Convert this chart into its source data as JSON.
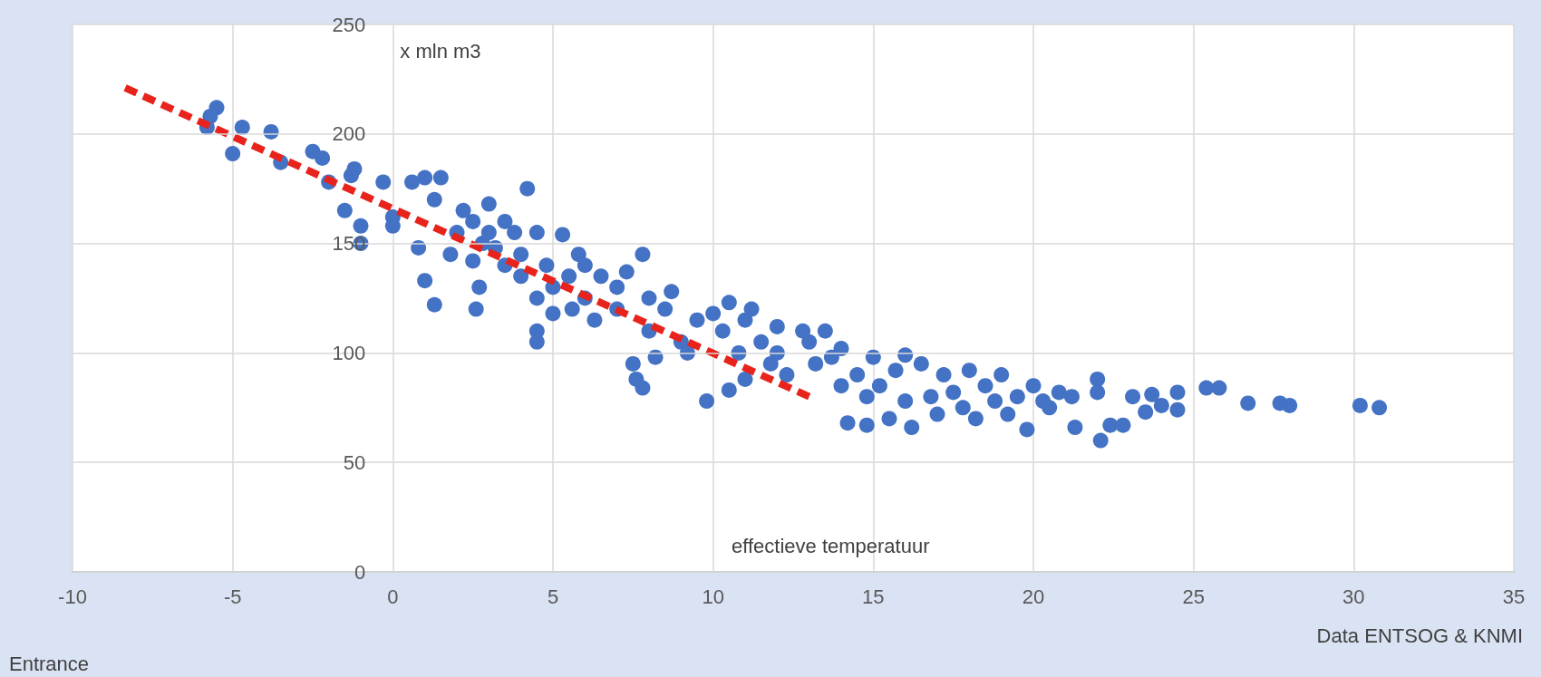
{
  "chart_data": {
    "type": "scatter",
    "xlabel": "effectieve temperatuur",
    "ylabel": "x mln m3",
    "annotations": [
      "Entrance",
      "Data ENTSOG & KNMI"
    ],
    "xlim": [
      -10,
      35
    ],
    "xticks": [
      -10,
      -5,
      0,
      5,
      10,
      15,
      20,
      25,
      30,
      35
    ],
    "ylim": [
      0,
      250
    ],
    "yticks": [
      0,
      50,
      100,
      150,
      200,
      250
    ],
    "grid": true,
    "marker": "circle",
    "series": [
      {
        "color": "#4472c4",
        "x": [
          -5.5,
          -5.7,
          -5.8,
          -5,
          -4.7,
          -3.8,
          -3.5,
          -2.5,
          -2.2,
          -2,
          -1.5,
          -1.3,
          -1.2,
          -1,
          -1,
          -0.3,
          0,
          0,
          0.6,
          1,
          1.3,
          0.8,
          1,
          1.3,
          1.5,
          1.8,
          2,
          2.2,
          2.5,
          2.8,
          2.5,
          3,
          3,
          2.7,
          2.6,
          3.2,
          3.5,
          3.5,
          3.8,
          4,
          4,
          4.2,
          4.5,
          4.5,
          4.5,
          4.5,
          4.8,
          5,
          5,
          5.3,
          5.5,
          5.6,
          5.8,
          6,
          6,
          6.3,
          6.5,
          7,
          7,
          7.3,
          7.5,
          7.6,
          7.8,
          7.8,
          8,
          8,
          8.2,
          8.5,
          8.7,
          9,
          9.2,
          9.5,
          9.8,
          10,
          10.3,
          10.5,
          10.5,
          10.8,
          11,
          11,
          11.2,
          11.5,
          11.8,
          12,
          12,
          12.3,
          12.8,
          13,
          13.2,
          13.5,
          13.7,
          14,
          14,
          14.2,
          14.5,
          14.8,
          14.8,
          15,
          15.2,
          15.5,
          15.7,
          16,
          16,
          16.2,
          16.5,
          16.8,
          17,
          17.2,
          17.5,
          17.8,
          18,
          18.2,
          18.5,
          18.8,
          19,
          19.2,
          19.5,
          19.8,
          20,
          20.3,
          20.5,
          20.8,
          21.2,
          21.3,
          22,
          22,
          22.1,
          22.4,
          22.8,
          23.1,
          23.5,
          23.7,
          24,
          24.5,
          24.5,
          25.4,
          25.8,
          26.7,
          27.7,
          28,
          30.2,
          30.8
        ],
        "values": [
          212,
          208,
          203,
          191,
          203,
          201,
          187,
          192,
          189,
          178,
          165,
          181,
          184,
          158,
          150,
          178,
          162,
          158,
          178,
          180,
          170,
          148,
          133,
          122,
          180,
          145,
          155,
          165,
          160,
          150,
          142,
          168,
          155,
          130,
          120,
          148,
          160,
          140,
          155,
          145,
          135,
          175,
          155,
          125,
          110,
          105,
          140,
          130,
          118,
          154,
          135,
          120,
          145,
          140,
          125,
          115,
          135,
          130,
          120,
          137,
          95,
          88,
          84,
          145,
          125,
          110,
          98,
          120,
          128,
          105,
          100,
          115,
          78,
          118,
          110,
          123,
          83,
          100,
          115,
          88,
          120,
          105,
          95,
          112,
          100,
          90,
          110,
          105,
          95,
          110,
          98,
          102,
          85,
          68,
          90,
          80,
          67,
          98,
          85,
          70,
          92,
          99,
          78,
          66,
          95,
          80,
          72,
          90,
          82,
          75,
          92,
          70,
          85,
          78,
          90,
          72,
          80,
          65,
          85,
          78,
          75,
          82,
          80,
          66,
          88,
          82,
          60,
          67,
          67,
          80,
          73,
          81,
          76,
          82,
          74,
          84,
          84,
          77,
          77,
          76,
          76,
          75
        ]
      },
      {
        "type": "line",
        "color": "#e8231c",
        "line_style": "dashed",
        "marker": "none",
        "x": [
          13,
          -8.5
        ],
        "values": [
          80,
          222
        ]
      }
    ]
  }
}
